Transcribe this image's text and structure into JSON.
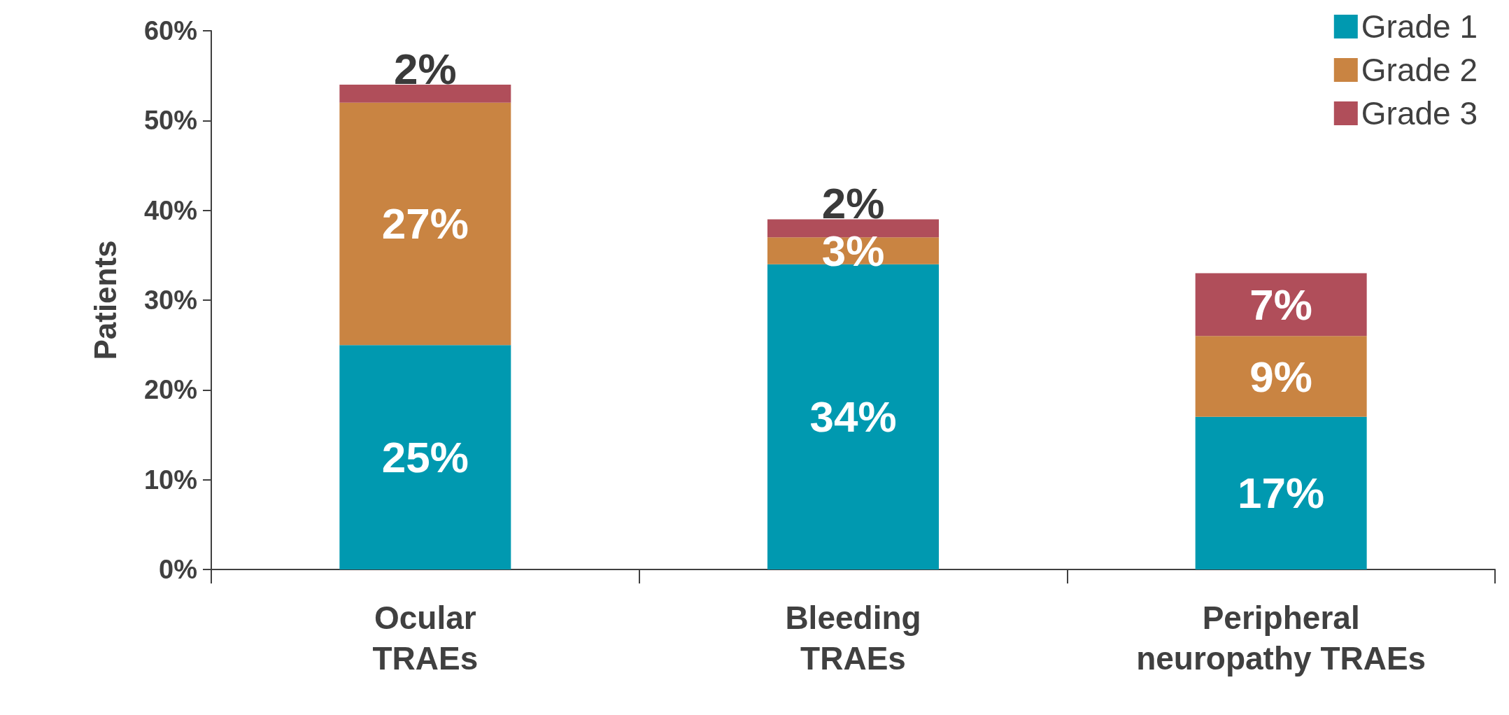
{
  "chart_data": {
    "type": "bar",
    "stacked": true,
    "ylabel": "Patients",
    "categories": [
      "Ocular\nTRAEs",
      "Bleeding\nTRAEs",
      "Peripheral\nneuropathy TRAEs"
    ],
    "series": [
      {
        "name": "Grade 1",
        "color": "#0099b0",
        "values": [
          25,
          34,
          17
        ],
        "value_labels": [
          "25%",
          "34%",
          "17%"
        ]
      },
      {
        "name": "Grade 2",
        "color": "#c98442",
        "values": [
          27,
          3,
          9
        ],
        "value_labels": [
          "27%",
          "3%",
          "9%"
        ]
      },
      {
        "name": "Grade 3",
        "color": "#b04e5a",
        "values": [
          2,
          2,
          7
        ],
        "value_labels": [
          "2%",
          "2%",
          "7%"
        ]
      }
    ],
    "ylim": [
      0,
      60
    ],
    "yticks": [
      {
        "value": 0,
        "label": "0%"
      },
      {
        "value": 10,
        "label": "10%"
      },
      {
        "value": 20,
        "label": "20%"
      },
      {
        "value": 30,
        "label": "30%"
      },
      {
        "value": 40,
        "label": "40%"
      },
      {
        "value": 50,
        "label": "50%"
      },
      {
        "value": 60,
        "label": "60%"
      }
    ],
    "grid": false,
    "legend": "top right"
  }
}
